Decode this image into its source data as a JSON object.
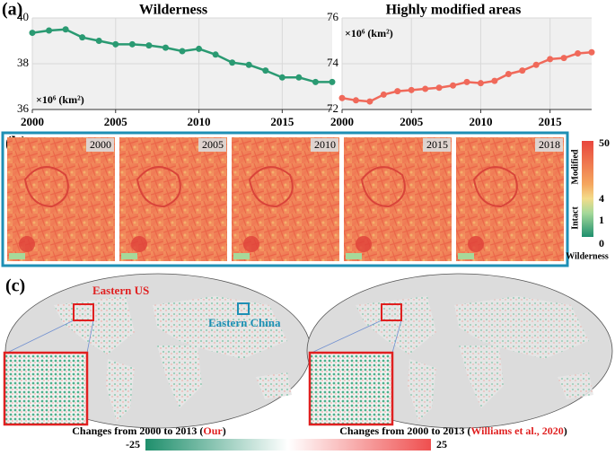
{
  "chart_data": [
    {
      "type": "line",
      "title": "Wilderness",
      "annotation": "×10⁶ (km²)",
      "x": [
        2000,
        2001,
        2002,
        2003,
        2004,
        2005,
        2006,
        2007,
        2008,
        2009,
        2010,
        2011,
        2012,
        2013,
        2014,
        2015,
        2016,
        2017,
        2018
      ],
      "values": [
        39.35,
        39.45,
        39.5,
        39.15,
        39.0,
        38.85,
        38.85,
        38.8,
        38.7,
        38.55,
        38.65,
        38.4,
        38.05,
        37.95,
        37.7,
        37.4,
        37.4,
        37.2,
        37.2
      ],
      "color": "#2a9a72",
      "xlim": [
        2000,
        2018
      ],
      "xticks": [
        2000,
        2005,
        2010,
        2015
      ],
      "ylim": [
        36,
        40
      ],
      "yticks": [
        36,
        38,
        40
      ],
      "grid": true
    },
    {
      "type": "line",
      "title": "Highly modified areas",
      "annotation": "×10⁶ (km²)",
      "x": [
        2000,
        2001,
        2002,
        2003,
        2004,
        2005,
        2006,
        2007,
        2008,
        2009,
        2010,
        2011,
        2012,
        2013,
        2014,
        2015,
        2016,
        2017,
        2018
      ],
      "values": [
        72.5,
        72.4,
        72.35,
        72.65,
        72.8,
        72.85,
        72.9,
        72.95,
        73.05,
        73.2,
        73.15,
        73.25,
        73.55,
        73.7,
        73.95,
        74.2,
        74.25,
        74.45,
        74.5
      ],
      "color": "#f0695a",
      "xlim": [
        2000,
        2018
      ],
      "xticks": [
        2000,
        2005,
        2010,
        2015
      ],
      "ylim": [
        72,
        76
      ],
      "yticks": [
        72,
        74,
        76
      ],
      "grid": true
    }
  ],
  "panel_labels": [
    "(a)",
    "(b)",
    "(c)"
  ],
  "panel_b": {
    "years": [
      "2000",
      "2005",
      "2010",
      "2015",
      "2018"
    ],
    "colorbar_ticks": [
      "50",
      "4",
      "1",
      "0"
    ],
    "modified": "Modified",
    "intact": "Intact",
    "wilderness": "Wilderness"
  },
  "panel_c": {
    "eastern_us": "Eastern US",
    "eastern_china": "Eastern China",
    "captions": [
      [
        "Changes from 2000 to 2013 (",
        "Our",
        ")"
      ],
      [
        "Changes from 2000 to 2013 (",
        "Williams et al., 2020",
        ")"
      ]
    ],
    "colorbar_min": "-25",
    "colorbar_max": "25"
  }
}
